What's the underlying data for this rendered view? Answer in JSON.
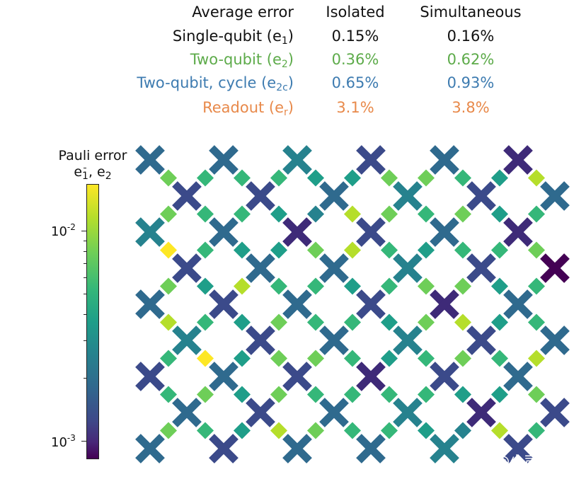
{
  "table": {
    "headers": {
      "label": "Average error",
      "isolated": "Isolated",
      "simultaneous": "Simultaneous"
    },
    "rows": [
      {
        "label": "Single-qubit (e",
        "sub": "1",
        "close": ")",
        "isolated": "0.15%",
        "simultaneous": "0.16%",
        "color": "#111111"
      },
      {
        "label": "Two-qubit (e",
        "sub": "2",
        "close": ")",
        "isolated": "0.36%",
        "simultaneous": "0.62%",
        "color": "#5dab4a"
      },
      {
        "label": "Two-qubit, cycle (e",
        "sub": "2c",
        "close": ")",
        "isolated": "0.65%",
        "simultaneous": "0.93%",
        "color": "#3d7bb0"
      },
      {
        "label": "Readout (e",
        "sub": "r",
        "close": ")",
        "isolated": "3.1%",
        "simultaneous": "3.8%",
        "color": "#e8894a"
      }
    ]
  },
  "colorbar": {
    "title_line1": "Pauli error",
    "title_line2_a": "e",
    "title_line2_sub1": "1",
    "title_line2_b": ", e",
    "title_line2_sub2": "2",
    "ticks": [
      {
        "base": "10",
        "exp": "-2"
      },
      {
        "base": "10",
        "exp": "-3"
      }
    ],
    "colormap": "viridis"
  },
  "watermark": "知乎 @少司命"
}
